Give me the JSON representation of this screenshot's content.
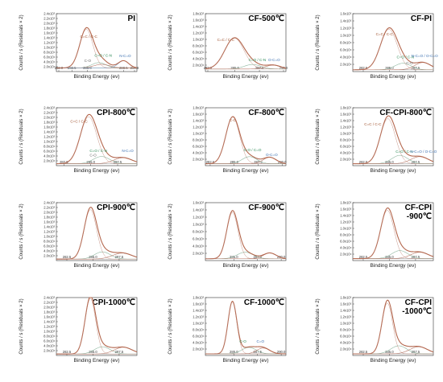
{
  "chart_data": [
    {
      "type": "line",
      "title": "PI",
      "xlabel": "Binding Energy (ev)",
      "ylabel": "Counts / s (Residuals × 2)",
      "xlim": [
        282.0,
        289.8
      ],
      "x_ticks": [
        "282.0",
        "283.5",
        "285.0",
        "288.5",
        "289.8"
      ],
      "y_ticks": [
        "2.0x10⁴",
        "4.0x10⁴",
        "6.0x10⁴",
        "8.0x10⁴",
        "1.0x10⁵",
        "1.2x10⁵",
        "1.4x10⁵",
        "1.6x10⁵",
        "1.8x10⁵",
        "2.0x10⁵",
        "2.2x10⁵",
        "2.4x10⁵"
      ],
      "ylim": [
        0,
        240000
      ],
      "peaks": [
        {
          "center": 284.9,
          "height": 160000,
          "width": 0.75
        },
        {
          "center": 286.1,
          "height": 22000,
          "width": 0.8
        },
        {
          "center": 286.4,
          "height": 15000,
          "width": 0.9
        },
        {
          "center": 288.5,
          "height": 30000,
          "width": 0.6
        }
      ],
      "baseline": 15000,
      "annotations": [
        {
          "text": "C=C / C-C",
          "x": 284.3,
          "y": 140000,
          "color": "#a0522d"
        },
        {
          "text": "C=O / C-N",
          "x": 285.7,
          "y": 62000,
          "color": "#2e8b57"
        },
        {
          "text": "C-O",
          "x": 284.7,
          "y": 40000,
          "color": "#666666"
        },
        {
          "text": "N-C=O",
          "x": 288.1,
          "y": 60000,
          "color": "#3a6fb0"
        }
      ]
    },
    {
      "type": "line",
      "title": "CF-500℃",
      "xlabel": "Binding Energy (ev)",
      "ylabel": "Counts / s (Residuals × 2)",
      "xlim": [
        282.0,
        290.2
      ],
      "x_ticks": [
        "282.0",
        "285.0",
        "287.5",
        "290.0"
      ],
      "y_ticks": [
        "2.0x10⁴",
        "4.0x10⁴",
        "6.0x10⁴",
        "8.0x10⁴",
        "1.0x10⁵",
        "1.2x10⁵",
        "1.4x10⁵",
        "1.6x10⁵",
        "1.8x10⁵"
      ],
      "ylim": [
        0,
        180000
      ],
      "peaks": [
        {
          "center": 284.95,
          "height": 96000,
          "width": 1.15
        },
        {
          "center": 286.8,
          "height": 14000,
          "width": 1.0
        },
        {
          "center": 288.9,
          "height": 12000,
          "width": 0.9
        }
      ],
      "baseline": 8000,
      "annotations": [
        {
          "text": "C=C / C-C",
          "x": 283.2,
          "y": 95000,
          "color": "#a0522d"
        },
        {
          "text": "C=O / C-N",
          "x": 286.4,
          "y": 33000,
          "color": "#2e8b57"
        },
        {
          "text": "O-C=O",
          "x": 288.4,
          "y": 32000,
          "color": "#3a6fb0"
        }
      ]
    },
    {
      "type": "line",
      "title": "CF-PI",
      "xlabel": "Binding Energy (ev)",
      "ylabel": "Counts / s (Residuals × 2)",
      "xlim": [
        281.5,
        289.2
      ],
      "x_ticks": [
        "282.5",
        "285.0",
        "287.5"
      ],
      "y_ticks": [
        "2.0x10⁴",
        "4.0x10⁴",
        "6.0x10⁴",
        "8.0x10⁴",
        "1.0x10⁵",
        "1.2x10⁵",
        "1.4x10⁵",
        "1.6x10⁵"
      ],
      "ylim": [
        0,
        160000
      ],
      "peaks": [
        {
          "center": 284.95,
          "height": 112000,
          "width": 0.95
        },
        {
          "center": 286.3,
          "height": 18000,
          "width": 0.9
        },
        {
          "center": 288.2,
          "height": 20000,
          "width": 0.9
        }
      ],
      "baseline": 5000,
      "annotations": [
        {
          "text": "C=C / C-C",
          "x": 283.7,
          "y": 100000,
          "color": "#a0522d"
        },
        {
          "text": "C=O / C-N",
          "x": 285.7,
          "y": 37000,
          "color": "#2e8b57"
        },
        {
          "text": "N-C=O / O-C=O",
          "x": 287.1,
          "y": 40000,
          "color": "#3a6fb0"
        },
        {
          "text": "C-O",
          "x": 286.6,
          "y": 20000,
          "color": "#666666"
        }
      ]
    },
    {
      "type": "line",
      "title": "CPI-800℃",
      "xlabel": "Binding Energy (ev)",
      "ylabel": "Counts / s (Residuals × 2)",
      "xlim": [
        281.8,
        289.3
      ],
      "x_ticks": [
        "282.5",
        "285.0",
        "287.5"
      ],
      "y_ticks": [
        "2.0x10⁴",
        "4.0x10⁴",
        "6.0x10⁴",
        "8.0x10⁴",
        "1.0x10⁵",
        "1.2x10⁵",
        "1.4x10⁵",
        "1.6x10⁵",
        "1.8x10⁵",
        "2.0x10⁵",
        "2.2x10⁵",
        "2.4x10⁵"
      ],
      "ylim": [
        0,
        240000
      ],
      "peaks": [
        {
          "center": 284.8,
          "height": 195000,
          "width": 0.9
        },
        {
          "center": 286.0,
          "height": 30000,
          "width": 0.9
        },
        {
          "center": 288.0,
          "height": 25000,
          "width": 1.0
        }
      ],
      "baseline": 8000,
      "annotations": [
        {
          "text": "C=C / C-C",
          "x": 283.1,
          "y": 178000,
          "color": "#a0522d"
        },
        {
          "text": "C=O / C-N",
          "x": 284.9,
          "y": 56000,
          "color": "#2e8b57"
        },
        {
          "text": "C-O",
          "x": 284.9,
          "y": 38000,
          "color": "#666666"
        },
        {
          "text": "N-C=O",
          "x": 287.9,
          "y": 56000,
          "color": "#3a6fb0"
        }
      ]
    },
    {
      "type": "line",
      "title": "CF-800℃",
      "xlabel": "Binding Energy (ev)",
      "ylabel": "Counts / s (Residuals × 2)",
      "xlim": [
        282.0,
        290.4
      ],
      "x_ticks": [
        "282.5",
        "285.0",
        "287.5",
        "290.0"
      ],
      "y_ticks": [
        "2.0x10⁴",
        "4.0x10⁴",
        "6.0x10⁴",
        "8.0x10⁴",
        "1.0x10⁵",
        "1.2x10⁵",
        "1.4x10⁵",
        "1.6x10⁵",
        "1.8x10⁵"
      ],
      "ylim": [
        0,
        180000
      ],
      "peaks": [
        {
          "center": 284.85,
          "height": 145000,
          "width": 0.85
        },
        {
          "center": 286.6,
          "height": 22000,
          "width": 0.9
        },
        {
          "center": 288.7,
          "height": 20000,
          "width": 0.8
        }
      ],
      "baseline": 6000,
      "annotations": [
        {
          "text": "C-C",
          "x": 284.5,
          "y": 138000,
          "color": "#a0522d"
        },
        {
          "text": "C-O / C=O",
          "x": 286.0,
          "y": 45000,
          "color": "#2e8b57"
        },
        {
          "text": "O-C=O",
          "x": 288.3,
          "y": 30000,
          "color": "#3a6fb0"
        }
      ]
    },
    {
      "type": "line",
      "title": "CF-CPI-800℃",
      "xlabel": "Binding Energy (ev)",
      "ylabel": "Counts / s (Residuals × 2)",
      "xlim": [
        281.5,
        289.2
      ],
      "x_ticks": [
        "282.5",
        "285.0",
        "287.5"
      ],
      "y_ticks": [
        "2.0x10⁴",
        "4.0x10⁴",
        "6.0x10⁴",
        "8.0x10⁴",
        "1.0x10⁵",
        "1.2x10⁵",
        "1.4x10⁵",
        "1.6x10⁵",
        "1.8x10⁵"
      ],
      "ylim": [
        0,
        180000
      ],
      "peaks": [
        {
          "center": 284.85,
          "height": 140000,
          "width": 0.85
        },
        {
          "center": 286.0,
          "height": 26000,
          "width": 0.9
        },
        {
          "center": 287.9,
          "height": 22000,
          "width": 1.0
        }
      ],
      "baseline": 6000,
      "annotations": [
        {
          "text": "C=C / C-C",
          "x": 282.6,
          "y": 125000,
          "color": "#a0522d"
        },
        {
          "text": "C=O / C-N",
          "x": 285.6,
          "y": 40000,
          "color": "#2e8b57"
        },
        {
          "text": "N-C=O / O-C=O",
          "x": 287.0,
          "y": 40000,
          "color": "#3a6fb0"
        }
      ]
    },
    {
      "type": "line",
      "title": "CPI-900℃",
      "xlabel": "Binding Energy (ev)",
      "ylabel": "Counts / s (Residuals × 2)",
      "xlim": [
        281.5,
        289.2
      ],
      "x_ticks": [
        "282.5",
        "285.0",
        "287.5"
      ],
      "y_ticks": [
        "2.0x10⁴",
        "4.0x10⁴",
        "6.0x10⁴",
        "8.0x10⁴",
        "1.0x10⁵",
        "1.2x10⁵",
        "1.4x10⁵",
        "1.6x10⁵",
        "1.8x10⁵",
        "2.0x10⁵",
        "2.2x10⁵",
        "2.4x10⁵"
      ],
      "ylim": [
        0,
        240000
      ],
      "peaks": [
        {
          "center": 284.75,
          "height": 205000,
          "width": 0.7
        },
        {
          "center": 285.9,
          "height": 30000,
          "width": 0.9
        },
        {
          "center": 287.8,
          "height": 25000,
          "width": 1.1
        }
      ],
      "baseline": 6000,
      "annotations": []
    },
    {
      "type": "line",
      "title": "CF-900℃",
      "xlabel": "Binding Energy (ev)",
      "ylabel": "Counts / s (Residuals × 2)",
      "xlim": [
        282.0,
        290.5
      ],
      "x_ticks": [
        "285.0",
        "287.5",
        "290.0"
      ],
      "y_ticks": [
        "2.0x10⁴",
        "4.0x10⁴",
        "6.0x10⁴",
        "8.0x10⁴",
        "1.0x10⁵",
        "1.2x10⁵",
        "1.4x10⁵",
        "1.6x10⁵"
      ],
      "ylim": [
        0,
        160000
      ],
      "peaks": [
        {
          "center": 284.85,
          "height": 128000,
          "width": 0.7
        },
        {
          "center": 286.2,
          "height": 18000,
          "width": 1.0
        },
        {
          "center": 288.8,
          "height": 16000,
          "width": 0.8
        }
      ],
      "baseline": 5000,
      "annotations": []
    },
    {
      "type": "line",
      "title": "CF-CPI\n-900℃",
      "xlabel": "Binding Energy (ev)",
      "ylabel": "Counts / s (Residuals × 2)",
      "xlim": [
        281.5,
        289.2
      ],
      "x_ticks": [
        "282.5",
        "285.0",
        "287.5"
      ],
      "y_ticks": [
        "2.0x10⁴",
        "4.0x10⁴",
        "6.0x10⁴",
        "8.0x10⁴",
        "1.0x10⁵",
        "1.2x10⁵",
        "1.4x10⁵",
        "1.6x10⁵",
        "1.8x10⁵"
      ],
      "ylim": [
        0,
        180000
      ],
      "peaks": [
        {
          "center": 284.8,
          "height": 150000,
          "width": 0.75
        },
        {
          "center": 286.0,
          "height": 25000,
          "width": 0.9
        },
        {
          "center": 287.9,
          "height": 20000,
          "width": 1.0
        }
      ],
      "baseline": 6000,
      "annotations": []
    },
    {
      "type": "line",
      "title": "CPI-1000℃",
      "xlabel": "Binding Energy (ev)",
      "ylabel": "Counts / s (Residuals × 2)",
      "xlim": [
        281.5,
        289.2
      ],
      "x_ticks": [
        "282.5",
        "285.0",
        "287.5"
      ],
      "y_ticks": [
        "2.0x10⁴",
        "4.0x10⁴",
        "6.0x10⁴",
        "8.0x10⁴",
        "1.0x10⁵",
        "1.2x10⁵",
        "1.4x10⁵",
        "1.6x10⁵",
        "1.8x10⁵",
        "2.0x10⁵",
        "2.2x10⁵",
        "2.4x10⁵"
      ],
      "ylim": [
        0,
        240000
      ],
      "peaks": [
        {
          "center": 284.75,
          "height": 230000,
          "width": 0.6
        },
        {
          "center": 285.9,
          "height": 30000,
          "width": 0.9
        },
        {
          "center": 287.9,
          "height": 28000,
          "width": 1.0
        }
      ],
      "baseline": 6000,
      "annotations": []
    },
    {
      "type": "line",
      "title": "CF-1000℃",
      "xlabel": "Binding Energy (ev)",
      "ylabel": "Counts / s (Residuals × 2)",
      "xlim": [
        282.0,
        290.5
      ],
      "x_ticks": [
        "285.0",
        "287.5",
        "290.0"
      ],
      "y_ticks": [
        "2.0x10⁴",
        "4.0x10⁴",
        "6.0x10⁴",
        "8.0x10⁴",
        "1.0x10⁵",
        "1.2x10⁵",
        "1.4x10⁵",
        "1.6x10⁵",
        "1.8x10⁵"
      ],
      "ylim": [
        0,
        180000
      ],
      "peaks": [
        {
          "center": 284.85,
          "height": 162000,
          "width": 0.55
        },
        {
          "center": 286.6,
          "height": 20000,
          "width": 0.9
        },
        {
          "center": 288.1,
          "height": 18000,
          "width": 0.8
        }
      ],
      "baseline": 5000,
      "annotations": [
        {
          "text": "C-O",
          "x": 285.6,
          "y": 40000,
          "color": "#2e8b57"
        },
        {
          "text": "C=O",
          "x": 287.4,
          "y": 40000,
          "color": "#3a6fb0"
        }
      ]
    },
    {
      "type": "line",
      "title": "CF-CPI\n-1000℃",
      "xlabel": "Binding Energy (ev)",
      "ylabel": "Counts / s (Residuals × 2)",
      "xlim": [
        281.5,
        289.2
      ],
      "x_ticks": [
        "282.5",
        "285.0",
        "287.5"
      ],
      "y_ticks": [
        "2.0x10⁴",
        "4.0x10⁴",
        "6.0x10⁴",
        "8.0x10⁴",
        "1.0x10⁵",
        "1.2x10⁵",
        "1.4x10⁵",
        "1.6x10⁵",
        "1.8x10⁵"
      ],
      "ylim": [
        0,
        180000
      ],
      "peaks": [
        {
          "center": 284.8,
          "height": 158000,
          "width": 0.6
        },
        {
          "center": 285.9,
          "height": 25000,
          "width": 0.9
        },
        {
          "center": 287.8,
          "height": 22000,
          "width": 1.0
        }
      ],
      "baseline": 5000,
      "annotations": []
    }
  ],
  "colors": {
    "envelope": "#b5684e",
    "component_1": "#8fb7a0",
    "component_2": "#b87a6a",
    "component_3": "#7fa8cf",
    "background": "#8a8a8a",
    "raw": "#3b5fa8",
    "axis": "#333333"
  }
}
